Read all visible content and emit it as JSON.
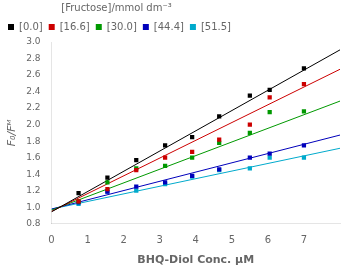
{
  "chart_data": {
    "type": "scatter",
    "xlabel": "BHQ-Diol Conc. μM",
    "ylabel": "F₀/Fᴹ",
    "xlim": [
      0,
      8
    ],
    "ylim": [
      0.8,
      3.0
    ],
    "xticks": [
      0,
      1,
      2,
      3,
      4,
      5,
      6,
      7
    ],
    "yticks": [
      0.8,
      {
        "value": 1.0,
        "label": "1.0"
      },
      1.2,
      1.4,
      1.6,
      1.8,
      {
        "value": 2.0,
        "label": "2.0"
      },
      2.2,
      2.4,
      2.6,
      2.8,
      {
        "value": 3.0,
        "label": "3.0"
      }
    ],
    "grid": false,
    "legend": "upper left",
    "legend_title": "[Fructose]/mmol dm⁻³",
    "series": [
      {
        "name": "[0.0]",
        "color": "#000000",
        "marker": "square",
        "x": [
          0.75,
          1.55,
          2.35,
          3.15,
          3.9,
          4.65,
          5.5,
          6.05,
          7.0
        ],
        "values": [
          1.17,
          1.36,
          1.57,
          1.75,
          1.85,
          2.1,
          2.35,
          2.42,
          2.68
        ],
        "fit": {
          "x": [
            0,
            8
          ],
          "values": [
            0.945,
            2.905
          ]
        }
      },
      {
        "name": "[16.6]",
        "color": "#cc0000",
        "marker": "square",
        "x": [
          0.75,
          1.55,
          2.35,
          3.15,
          3.9,
          4.65,
          5.5,
          6.05,
          7.0
        ],
        "values": [
          1.07,
          1.22,
          1.45,
          1.6,
          1.67,
          1.82,
          2.0,
          2.33,
          2.49
        ],
        "fit": {
          "x": [
            0,
            8
          ],
          "values": [
            0.95,
            2.67
          ]
        }
      },
      {
        "name": "[30.0]",
        "color": "#009900",
        "marker": "square",
        "x": [
          0.75,
          1.55,
          2.35,
          3.15,
          3.9,
          4.65,
          5.5,
          6.05,
          7.0
        ],
        "values": [
          1.07,
          1.3,
          1.47,
          1.5,
          1.6,
          1.78,
          1.9,
          2.15,
          2.16
        ],
        "fit": {
          "x": [
            0,
            8
          ],
          "values": [
            0.965,
            2.285
          ]
        }
      },
      {
        "name": "[44.4]",
        "color": "#0000bb",
        "marker": "square",
        "x": [
          0.75,
          1.55,
          2.35,
          3.15,
          3.9,
          4.65,
          5.5,
          6.05,
          7.0
        ],
        "values": [
          1.06,
          1.19,
          1.25,
          1.3,
          1.38,
          1.46,
          1.6,
          1.65,
          1.75
        ],
        "fit": {
          "x": [
            0,
            8
          ],
          "values": [
            0.978,
            1.874
          ]
        }
      },
      {
        "name": "[51.5]",
        "color": "#00aacc",
        "marker": "square",
        "x": [
          0.75,
          1.55,
          2.35,
          3.15,
          3.9,
          4.65,
          5.5,
          6.05,
          7.0
        ],
        "values": [
          1.04,
          1.19,
          1.2,
          1.28,
          1.37,
          1.45,
          1.47,
          1.6,
          1.6
        ],
        "fit": {
          "x": [
            0,
            8
          ],
          "values": [
            0.978,
            1.714
          ]
        }
      }
    ]
  }
}
